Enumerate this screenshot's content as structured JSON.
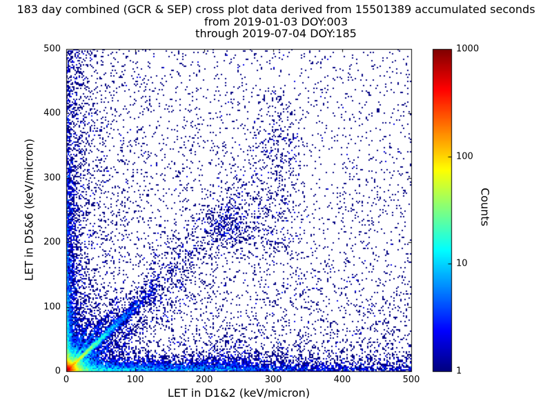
{
  "chart_data": {
    "type": "heatmap",
    "title": "183 day combined (GCR & SEP) cross plot data derived from 15501389 accumulated seconds",
    "subtitle": [
      "from 2019-01-03 DOY:003",
      "through 2019-07-04 DOY:185"
    ],
    "xlabel": "LET in D1&2 (keV/micron)",
    "ylabel": "LET in D5&6 (keV/micron)",
    "xlim": [
      0,
      500
    ],
    "ylim": [
      0,
      500
    ],
    "x_ticks": [
      0,
      100,
      200,
      300,
      400,
      500
    ],
    "y_ticks": [
      0,
      100,
      200,
      300,
      400,
      500
    ],
    "grid": false,
    "background": "#ffffff",
    "point_color_min": "#00007f",
    "colorbar": {
      "label": "Counts",
      "scale": "log",
      "range": [
        1,
        1000
      ],
      "ticks": [
        1,
        10,
        100,
        1000
      ],
      "colormap": "jet",
      "position": "right"
    },
    "distribution": {
      "comment": "2D histogram of LET coincidence events; counts per bin colored on log jet scale. Clusters parameterize the observed point density.",
      "seed": 20190103,
      "clusters": [
        {
          "name": "origin-core",
          "n": 9000,
          "x": {
            "dist": "exp",
            "scale": 6,
            "max": 500
          },
          "y": {
            "dist": "exp",
            "scale": 6,
            "max": 500
          }
        },
        {
          "name": "origin-halo",
          "n": 3000,
          "x": {
            "dist": "exp",
            "scale": 16,
            "max": 500
          },
          "y": {
            "dist": "exp",
            "scale": 16,
            "max": 500
          }
        },
        {
          "name": "main-diagonal",
          "n": 4200,
          "x": {
            "dist": "exp",
            "scale": 38,
            "max": 135
          },
          "y": {
            "dist": "slope",
            "slope": 1.0,
            "sigma": 0.06,
            "noise": 1.5
          }
        },
        {
          "name": "diagonal-spread",
          "n": 1400,
          "x": {
            "dist": "exp",
            "scale": 55,
            "max": 210
          },
          "y": {
            "dist": "slope",
            "slope": 1.0,
            "sigma": 0.22
          }
        },
        {
          "name": "upper-diagonal",
          "n": 500,
          "x": {
            "dist": "uniform",
            "min": 120,
            "max": 340
          },
          "y": {
            "dist": "slope",
            "slope": 1.0,
            "sigma": 0.18
          }
        },
        {
          "name": "ray-steep-1",
          "n": 700,
          "x": {
            "dist": "exp",
            "scale": 24,
            "max": 75
          },
          "y": {
            "dist": "slope",
            "slope": 1.5,
            "sigma": 0.1
          }
        },
        {
          "name": "ray-steep-2",
          "n": 450,
          "x": {
            "dist": "exp",
            "scale": 16,
            "max": 50
          },
          "y": {
            "dist": "slope",
            "slope": 2.3,
            "sigma": 0.18
          }
        },
        {
          "name": "ray-shallow",
          "n": 550,
          "x": {
            "dist": "exp",
            "scale": 48,
            "max": 160
          },
          "y": {
            "dist": "slope",
            "slope": 0.6,
            "sigma": 0.08
          }
        },
        {
          "name": "bottom-band",
          "n": 5200,
          "x": {
            "dist": "exp",
            "scale": 150,
            "max": 500
          },
          "y": {
            "dist": "exp",
            "scale": 7,
            "max": 500
          }
        },
        {
          "name": "bottom-band-far",
          "n": 1200,
          "x": {
            "dist": "uniform",
            "min": 0,
            "max": 500
          },
          "y": {
            "dist": "exp",
            "scale": 10,
            "max": 500
          }
        },
        {
          "name": "bottom-patch",
          "n": 420,
          "x": {
            "dist": "gauss",
            "mean": 235,
            "sigma": 28
          },
          "y": {
            "dist": "exp",
            "scale": 14,
            "max": 60
          }
        },
        {
          "name": "left-band",
          "n": 2400,
          "x": {
            "dist": "exp",
            "scale": 9,
            "max": 500
          },
          "y": {
            "dist": "exp",
            "scale": 150,
            "max": 500
          }
        },
        {
          "name": "left-band-high",
          "n": 900,
          "x": {
            "dist": "exp",
            "scale": 14,
            "max": 500
          },
          "y": {
            "dist": "uniform",
            "min": 0,
            "max": 500
          }
        },
        {
          "name": "axis-hug-left",
          "n": 1200,
          "x": {
            "dist": "exp",
            "scale": 2.5,
            "max": 15
          },
          "y": {
            "dist": "exp",
            "scale": 90,
            "max": 500
          }
        },
        {
          "name": "mid-cluster",
          "n": 380,
          "x": {
            "dist": "gauss",
            "mean": 233,
            "sigma": 21
          },
          "y": {
            "dist": "gauss",
            "mean": 231,
            "sigma": 21
          }
        },
        {
          "name": "upper-plume",
          "n": 300,
          "x": {
            "dist": "gauss",
            "mean": 302,
            "sigma": 17
          },
          "y": {
            "dist": "uniform",
            "min": 180,
            "max": 435
          }
        },
        {
          "name": "diffuse-uniform",
          "n": 2600,
          "x": {
            "dist": "uniform",
            "min": 0,
            "max": 500
          },
          "y": {
            "dist": "uniform",
            "min": 0,
            "max": 500
          }
        },
        {
          "name": "diffuse-bottom",
          "n": 1800,
          "x": {
            "dist": "uniform",
            "min": 0,
            "max": 500
          },
          "y": {
            "dist": "exp",
            "scale": 130,
            "max": 500
          }
        },
        {
          "name": "diffuse-left",
          "n": 1100,
          "x": {
            "dist": "exp",
            "scale": 110,
            "max": 500
          },
          "y": {
            "dist": "uniform",
            "min": 0,
            "max": 500
          }
        }
      ]
    }
  }
}
